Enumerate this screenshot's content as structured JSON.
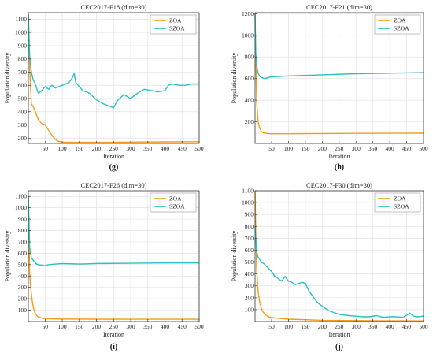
{
  "colors": {
    "ZOA": "#F39B1C",
    "SZOA": "#2BBFC6",
    "grid": "#e2e2e2",
    "axis": "#333333"
  },
  "chart_data": [
    {
      "type": "line",
      "panel": "(g)",
      "title": "CEC2017-F18 (dim=30)",
      "xlabel": "Iteration",
      "ylabel": "Population diversity",
      "xlim": [
        1,
        500
      ],
      "ylim": [
        160,
        1150
      ],
      "xticks": [
        50,
        100,
        150,
        200,
        250,
        300,
        350,
        400,
        450,
        500
      ],
      "yticks": [
        200,
        300,
        400,
        500,
        600,
        700,
        800,
        900,
        1000,
        1100
      ],
      "grid": true,
      "legend": "top-right",
      "series": [
        {
          "name": "ZOA",
          "x": [
            1,
            5,
            10,
            15,
            20,
            30,
            40,
            50,
            60,
            70,
            80,
            90,
            100,
            150,
            200,
            300,
            400,
            500
          ],
          "values": [
            1140,
            720,
            460,
            440,
            410,
            340,
            310,
            300,
            260,
            220,
            190,
            175,
            170,
            168,
            168,
            170,
            172,
            173
          ]
        },
        {
          "name": "SZOA",
          "x": [
            1,
            5,
            10,
            15,
            20,
            30,
            40,
            50,
            60,
            70,
            80,
            100,
            120,
            130,
            135,
            140,
            160,
            180,
            200,
            220,
            240,
            250,
            260,
            280,
            300,
            320,
            340,
            360,
            380,
            400,
            410,
            420,
            440,
            460,
            480,
            500
          ],
          "values": [
            1140,
            820,
            700,
            640,
            620,
            540,
            560,
            590,
            570,
            600,
            580,
            600,
            620,
            660,
            690,
            620,
            560,
            540,
            490,
            460,
            440,
            430,
            480,
            530,
            500,
            540,
            570,
            560,
            550,
            560,
            600,
            610,
            600,
            600,
            610,
            610
          ]
        }
      ]
    },
    {
      "type": "line",
      "panel": "(h)",
      "title": "CEC2017-F21 (dim=30)",
      "xlabel": "Iteration",
      "ylabel": "Population diversity",
      "xlim": [
        1,
        500
      ],
      "ylim": [
        0,
        1210
      ],
      "xticks": [
        50,
        100,
        150,
        200,
        250,
        300,
        350,
        400,
        450,
        500
      ],
      "yticks": [
        200,
        400,
        600,
        800,
        1000,
        1200
      ],
      "grid": true,
      "legend": "top-right",
      "series": [
        {
          "name": "ZOA",
          "x": [
            1,
            3,
            6,
            10,
            15,
            20,
            25,
            30,
            40,
            50,
            100,
            200,
            300,
            400,
            500
          ],
          "values": [
            1200,
            800,
            380,
            200,
            140,
            110,
            100,
            95,
            92,
            90,
            90,
            92,
            93,
            94,
            95
          ]
        },
        {
          "name": "SZOA",
          "x": [
            1,
            3,
            6,
            10,
            15,
            20,
            25,
            30,
            40,
            50,
            100,
            200,
            300,
            400,
            500
          ],
          "values": [
            1200,
            830,
            720,
            650,
            620,
            610,
            605,
            600,
            610,
            615,
            625,
            635,
            645,
            650,
            655
          ]
        }
      ]
    },
    {
      "type": "line",
      "panel": "(i)",
      "title": "CEC2017-F26 (dim=30)",
      "xlabel": "Iteration",
      "ylabel": "Population diversity",
      "xlim": [
        1,
        500
      ],
      "ylim": [
        0,
        1150
      ],
      "xticks": [
        50,
        100,
        150,
        200,
        250,
        300,
        350,
        400,
        450,
        500
      ],
      "yticks": [
        100,
        200,
        300,
        400,
        500,
        600,
        700,
        800,
        900,
        1000,
        1100
      ],
      "grid": true,
      "legend": "top-right",
      "series": [
        {
          "name": "ZOA",
          "x": [
            1,
            3,
            5,
            8,
            12,
            16,
            20,
            25,
            30,
            40,
            50,
            100,
            200,
            300,
            400,
            500
          ],
          "values": [
            1100,
            700,
            420,
            300,
            190,
            120,
            80,
            55,
            40,
            30,
            25,
            22,
            21,
            20,
            20,
            20
          ]
        },
        {
          "name": "SZOA",
          "x": [
            1,
            5,
            10,
            15,
            20,
            25,
            30,
            40,
            50,
            60,
            80,
            100,
            150,
            200,
            300,
            400,
            500
          ],
          "values": [
            1100,
            650,
            560,
            540,
            520,
            505,
            500,
            495,
            490,
            500,
            505,
            510,
            505,
            510,
            512,
            515,
            515
          ]
        }
      ]
    },
    {
      "type": "line",
      "panel": "(j)",
      "title": "CEC2017-F30 (dim=30)",
      "xlabel": "Iteration",
      "ylabel": "Population diversity",
      "xlim": [
        1,
        500
      ],
      "ylim": [
        0,
        1100
      ],
      "xticks": [
        50,
        100,
        150,
        200,
        250,
        300,
        350,
        400,
        450,
        500
      ],
      "yticks": [
        100,
        200,
        300,
        400,
        500,
        600,
        700,
        800,
        900,
        1000,
        1100
      ],
      "grid": true,
      "legend": "top-right",
      "series": [
        {
          "name": "ZOA",
          "x": [
            1,
            3,
            6,
            10,
            15,
            20,
            25,
            30,
            40,
            50,
            60,
            80,
            100,
            150,
            200,
            300,
            400,
            500
          ],
          "values": [
            1100,
            750,
            430,
            250,
            160,
            110,
            80,
            60,
            40,
            35,
            30,
            25,
            20,
            15,
            10,
            8,
            6,
            5
          ]
        },
        {
          "name": "SZOA",
          "x": [
            1,
            5,
            10,
            15,
            20,
            30,
            40,
            50,
            60,
            70,
            80,
            90,
            100,
            110,
            120,
            130,
            140,
            150,
            160,
            170,
            180,
            190,
            200,
            220,
            250,
            280,
            300,
            320,
            340,
            360,
            380,
            400,
            420,
            440,
            460,
            470,
            480,
            500
          ],
          "values": [
            800,
            600,
            540,
            520,
            500,
            480,
            450,
            420,
            380,
            360,
            340,
            380,
            340,
            330,
            310,
            320,
            330,
            320,
            260,
            220,
            180,
            150,
            130,
            90,
            60,
            50,
            45,
            40,
            40,
            50,
            35,
            40,
            40,
            35,
            70,
            45,
            40,
            45
          ]
        }
      ]
    }
  ]
}
